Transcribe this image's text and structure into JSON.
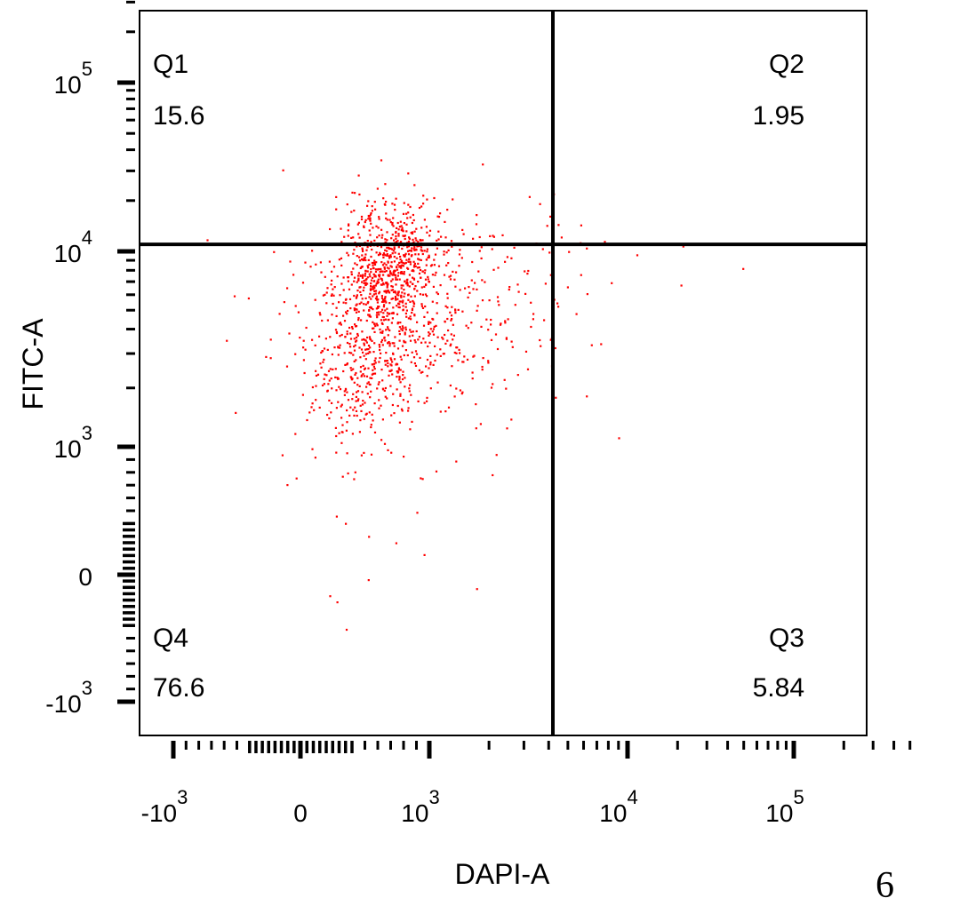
{
  "chart_data": {
    "type": "scatter",
    "scale": "biexponential",
    "xlabel": "DAPI-A",
    "ylabel": "FITC-A",
    "x_ticks": [
      {
        "base": "-10",
        "exp": "3",
        "value": -1000
      },
      {
        "base": "0",
        "exp": "",
        "value": 0
      },
      {
        "base": "10",
        "exp": "3",
        "value": 1000
      },
      {
        "base": "10",
        "exp": "4",
        "value": 10000
      },
      {
        "base": "10",
        "exp": "5",
        "value": 100000
      }
    ],
    "y_ticks": [
      {
        "base": "-10",
        "exp": "3",
        "value": -1000
      },
      {
        "base": "0",
        "exp": "",
        "value": 0
      },
      {
        "base": "10",
        "exp": "3",
        "value": 1000
      },
      {
        "base": "10",
        "exp": "4",
        "value": 10000
      },
      {
        "base": "10",
        "exp": "5",
        "value": 100000
      }
    ],
    "gate": {
      "x": 4200,
      "y": 11000
    },
    "quadrants": [
      {
        "id": "Q1",
        "label": "Q1",
        "percent": "15.6",
        "corner": "top-left"
      },
      {
        "id": "Q2",
        "label": "Q2",
        "percent": "1.95",
        "corner": "top-right"
      },
      {
        "id": "Q3",
        "label": "Q3",
        "percent": "5.84",
        "corner": "bottom-right"
      },
      {
        "id": "Q4",
        "label": "Q4",
        "percent": "76.6",
        "corner": "bottom-left"
      }
    ],
    "point_color": "#ff0000",
    "event_count": 1500,
    "grid": false,
    "legend": "none"
  },
  "panel_number": "6"
}
